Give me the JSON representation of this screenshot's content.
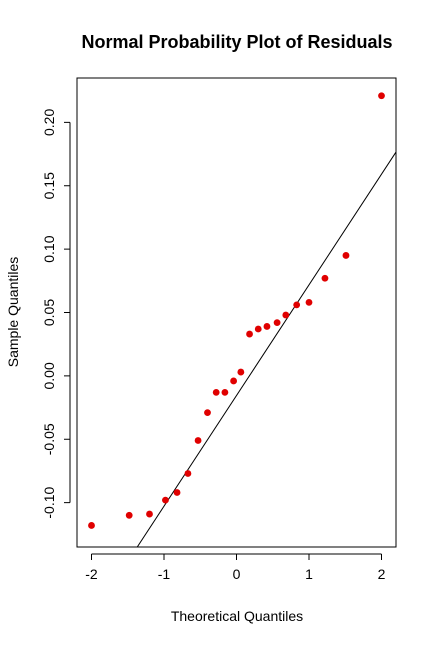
{
  "chart_data": {
    "type": "scatter",
    "title": "Normal Probability Plot of Residuals",
    "xlabel": "Theoretical Quantiles",
    "ylabel": "Sample Quantiles",
    "xlim": [
      -2.2,
      2.2
    ],
    "ylim": [
      -0.135,
      0.235
    ],
    "x_ticks": [
      -2,
      -1,
      0,
      1,
      2
    ],
    "x_tick_labels": [
      "-2",
      "-1",
      "0",
      "1",
      "2"
    ],
    "y_ticks": [
      -0.1,
      -0.05,
      0.0,
      0.05,
      0.1,
      0.15,
      0.2
    ],
    "y_tick_labels": [
      "-0.10",
      "-0.05",
      "0.00",
      "0.05",
      "0.10",
      "0.15",
      "0.20"
    ],
    "grid": false,
    "point_color": "#e00000",
    "line_color": "#000000",
    "points": [
      {
        "x": -2.0,
        "y": -0.118
      },
      {
        "x": -1.48,
        "y": -0.11
      },
      {
        "x": -1.2,
        "y": -0.109
      },
      {
        "x": -0.98,
        "y": -0.098
      },
      {
        "x": -0.82,
        "y": -0.092
      },
      {
        "x": -0.67,
        "y": -0.077
      },
      {
        "x": -0.53,
        "y": -0.051
      },
      {
        "x": -0.4,
        "y": -0.029
      },
      {
        "x": -0.28,
        "y": -0.013
      },
      {
        "x": -0.16,
        "y": -0.013
      },
      {
        "x": -0.04,
        "y": -0.004
      },
      {
        "x": 0.06,
        "y": 0.003
      },
      {
        "x": 0.18,
        "y": 0.033
      },
      {
        "x": 0.3,
        "y": 0.037
      },
      {
        "x": 0.42,
        "y": 0.039
      },
      {
        "x": 0.56,
        "y": 0.042
      },
      {
        "x": 0.68,
        "y": 0.048
      },
      {
        "x": 0.83,
        "y": 0.056
      },
      {
        "x": 1.0,
        "y": 0.058
      },
      {
        "x": 1.22,
        "y": 0.077
      },
      {
        "x": 1.51,
        "y": 0.095
      },
      {
        "x": 2.0,
        "y": 0.221
      }
    ],
    "reference_line": {
      "slope": 0.0873,
      "intercept": -0.0155
    }
  }
}
